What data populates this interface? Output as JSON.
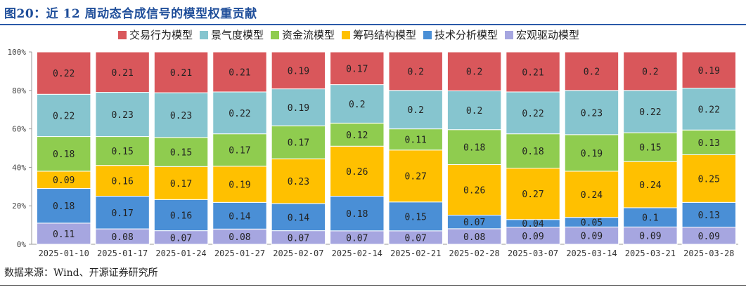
{
  "header": {
    "title": "图20：近 12 周动态合成信号的模型权重贡献"
  },
  "footer": {
    "source": "数据来源：Wind、开源证券研究所"
  },
  "chart_data": {
    "type": "bar",
    "stacked": true,
    "categories": [
      "2025-01-10",
      "2025-01-17",
      "2025-01-24",
      "2025-01-27",
      "2025-02-07",
      "2025-02-14",
      "2025-02-21",
      "2025-02-28",
      "2025-03-07",
      "2025-03-14",
      "2025-03-21",
      "2025-03-28"
    ],
    "series": [
      {
        "name": "宏观驱动模型",
        "color": "#a6a6e0",
        "values": [
          0.11,
          0.08,
          0.07,
          0.08,
          0.07,
          0.07,
          0.07,
          0.08,
          0.09,
          0.09,
          0.09,
          0.09
        ]
      },
      {
        "name": "技术分析模型",
        "color": "#4a8fd6",
        "values": [
          0.18,
          0.17,
          0.16,
          0.14,
          0.14,
          0.18,
          0.15,
          0.07,
          0.04,
          0.05,
          0.1,
          0.13
        ]
      },
      {
        "name": "筹码结构模型",
        "color": "#ffc000",
        "values": [
          0.09,
          0.16,
          0.17,
          0.19,
          0.23,
          0.26,
          0.27,
          0.26,
          0.27,
          0.24,
          0.24,
          0.25
        ]
      },
      {
        "name": "资金流模型",
        "color": "#8fcc4f",
        "values": [
          0.18,
          0.15,
          0.15,
          0.17,
          0.17,
          0.12,
          0.11,
          0.18,
          0.18,
          0.19,
          0.15,
          0.13
        ]
      },
      {
        "name": "景气度模型",
        "color": "#86c5cf",
        "values": [
          0.22,
          0.23,
          0.23,
          0.22,
          0.19,
          0.2,
          0.2,
          0.2,
          0.22,
          0.23,
          0.22,
          0.22
        ]
      },
      {
        "name": "交易行为模型",
        "color": "#d9575b",
        "values": [
          0.22,
          0.21,
          0.21,
          0.21,
          0.19,
          0.17,
          0.2,
          0.2,
          0.21,
          0.2,
          0.2,
          0.19
        ]
      }
    ],
    "legend_order": [
      "交易行为模型",
      "景气度模型",
      "资金流模型",
      "筹码结构模型",
      "技术分析模型",
      "宏观驱动模型"
    ],
    "yticks": [
      "0%",
      "20%",
      "40%",
      "60%",
      "80%",
      "100%"
    ],
    "ylim": [
      0,
      1
    ],
    "legend_position": "top",
    "grid": false
  }
}
